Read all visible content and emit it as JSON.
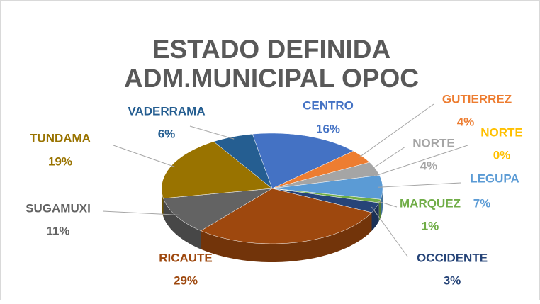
{
  "chart_data": {
    "type": "pie",
    "title": [
      "ESTADO DEFINIDA",
      "ADM.MUNICIPAL OPOC"
    ],
    "categories": [
      "CENTRO",
      "GUTIERREZ",
      "NORTE",
      "NORTE",
      "LEGUPA",
      "MARQUEZ",
      "OCCIDENTE",
      "RICAUTE",
      "SUGAMUXI",
      "TUNDAMA",
      "VADERRAMA"
    ],
    "values": [
      16,
      4,
      4,
      0,
      7,
      1,
      3,
      29,
      11,
      19,
      6
    ],
    "value_labels": [
      "16%",
      "4%",
      "4%",
      "0%",
      "7%",
      "1%",
      "3%",
      "29%",
      "11%",
      "19%",
      "6%"
    ],
    "colors": [
      "#4472c4",
      "#ed7d31",
      "#a5a5a5",
      "#ffc000",
      "#5b9bd5",
      "#70ad47",
      "#264478",
      "#9e480e",
      "#636363",
      "#997300",
      "#255e91"
    ]
  }
}
